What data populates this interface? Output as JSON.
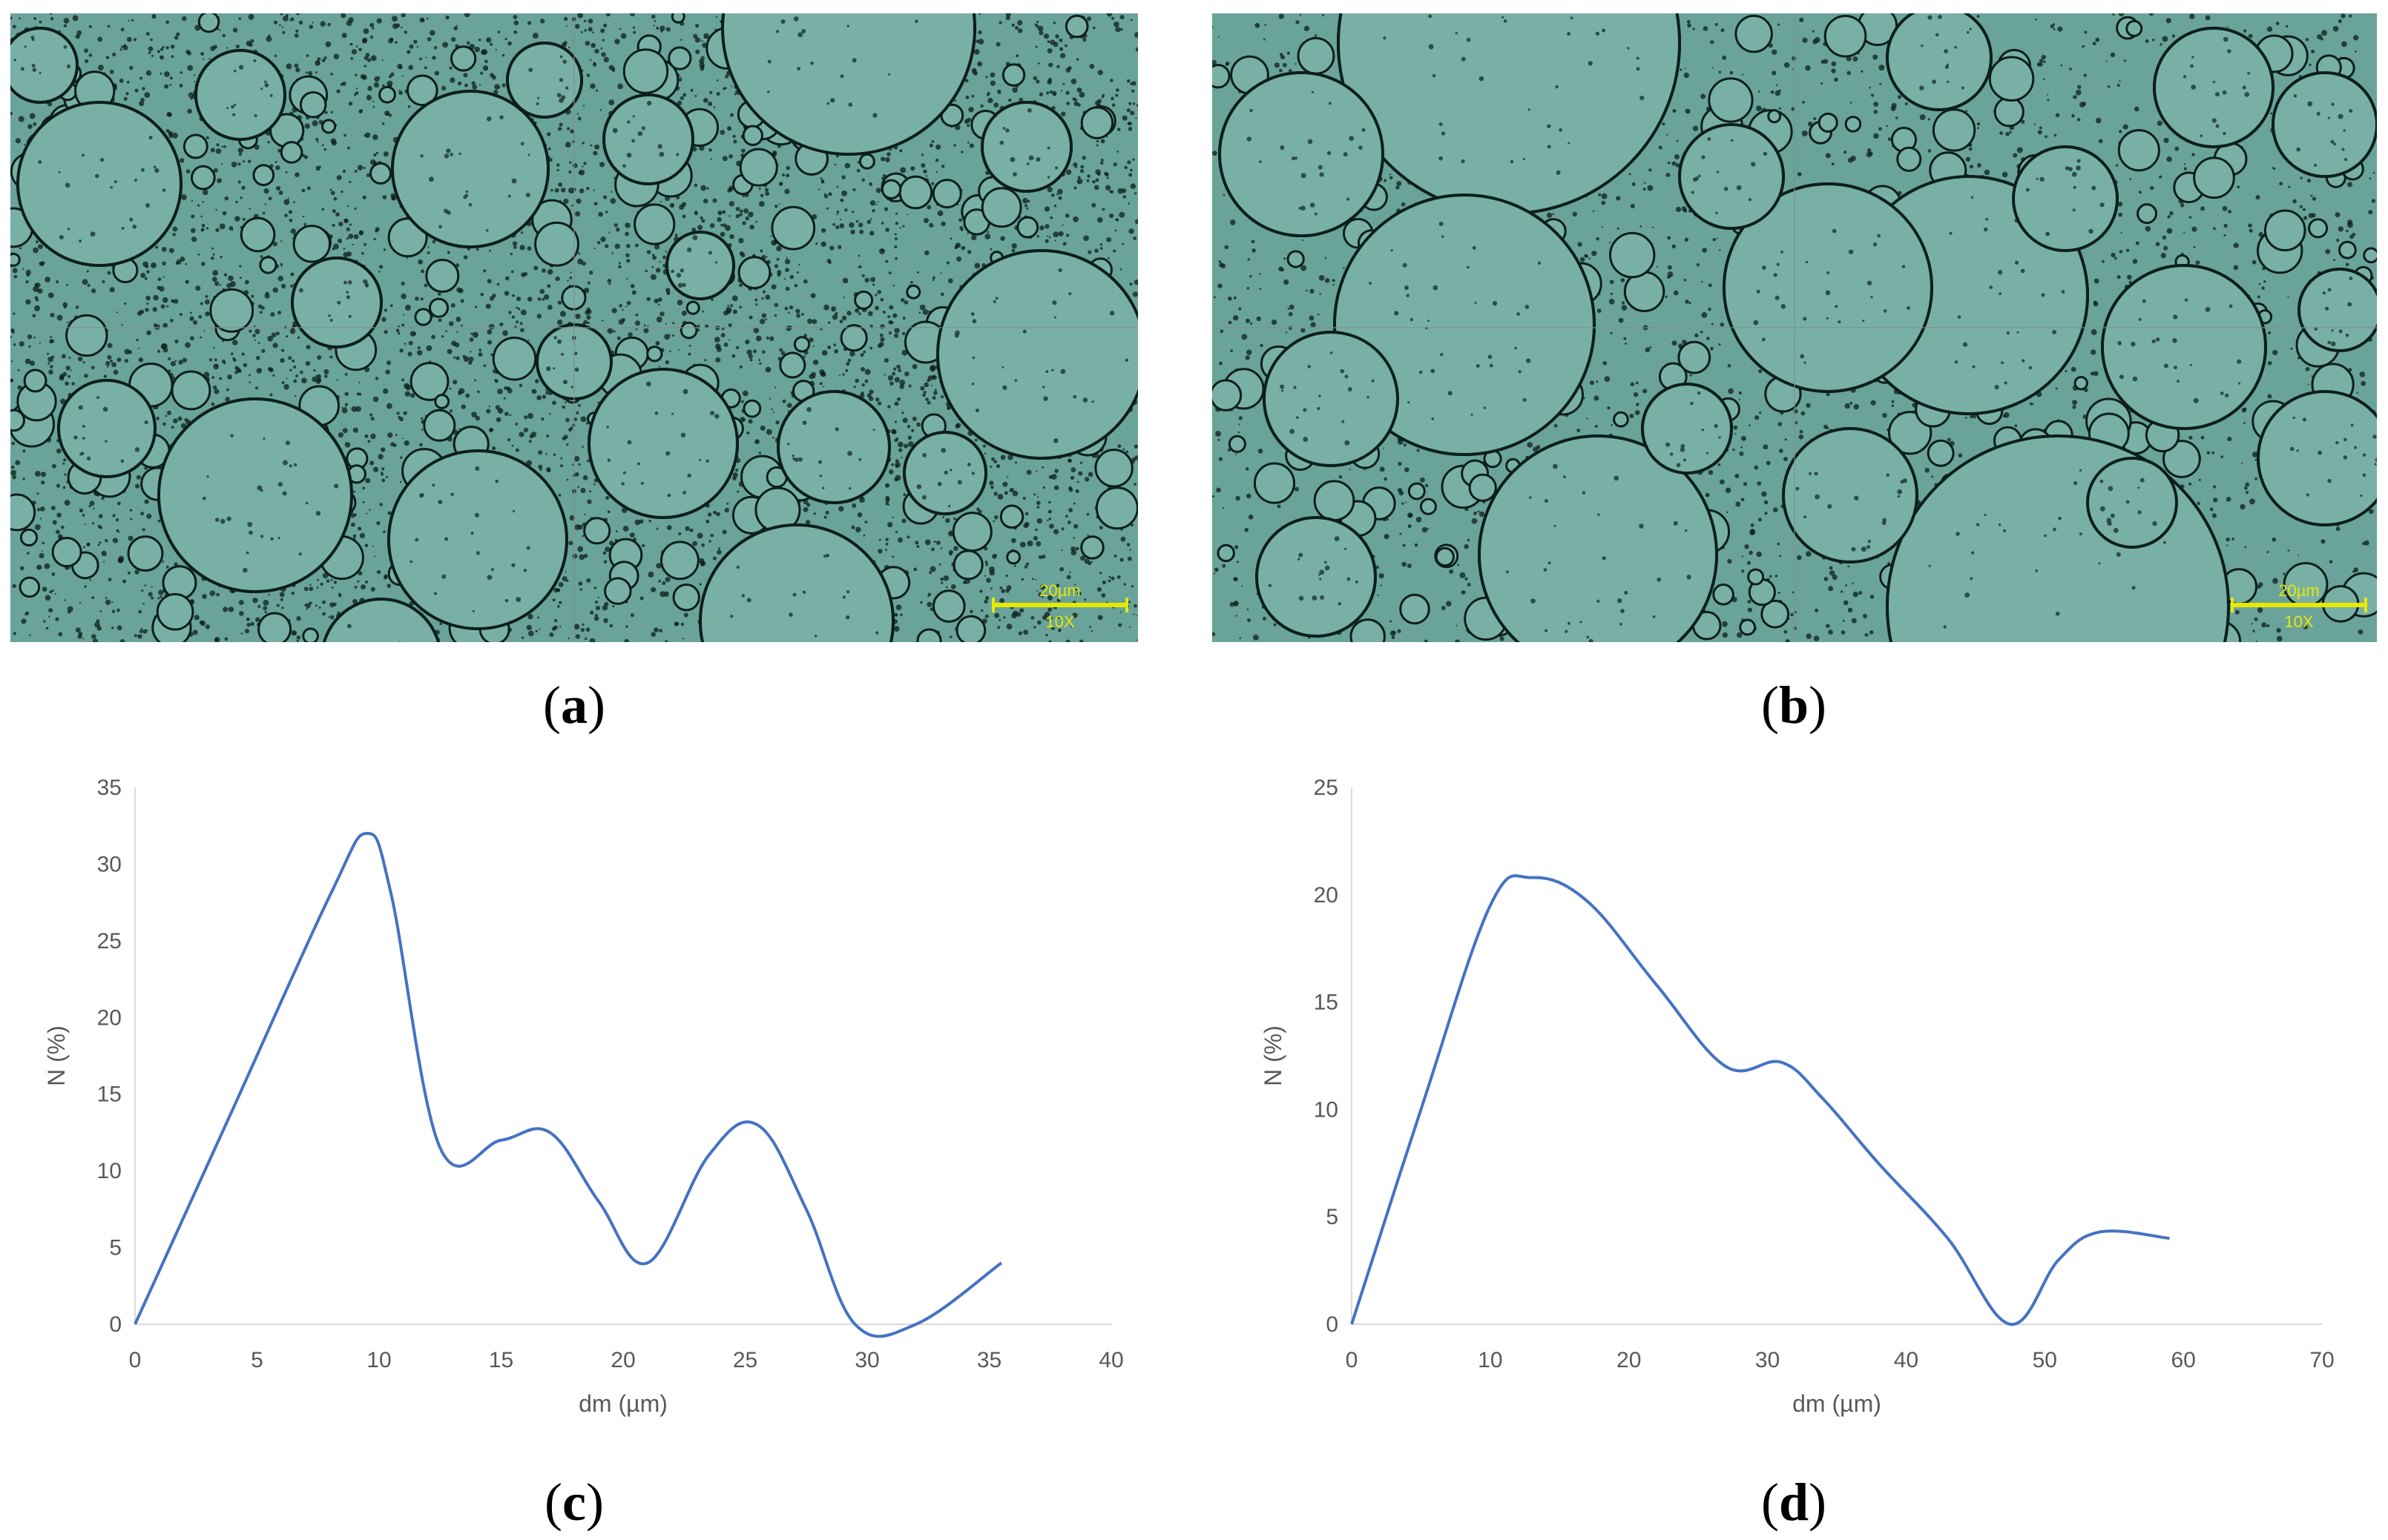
{
  "panels": {
    "a": {
      "label": "a",
      "scale_text": "20µm",
      "mag_text": "10X"
    },
    "b": {
      "label": "b",
      "scale_text": "20µm",
      "mag_text": "10X"
    },
    "c": {
      "label": "c"
    },
    "d": {
      "label": "d"
    }
  },
  "colors": {
    "micro_background": "#6aa39a",
    "droplet_fill": "#78b0a6",
    "droplet_edge": "#0d1f1b",
    "scale_bar": "#e8e800",
    "line": "#4472c4",
    "axis": "#d9d9d9"
  },
  "chart_data": [
    {
      "id": "c",
      "type": "line",
      "title": "",
      "xlabel": "dm (µm)",
      "ylabel": "N (%)",
      "xlim": [
        0,
        40
      ],
      "ylim": [
        0,
        35
      ],
      "xticks": [
        0,
        5,
        10,
        15,
        20,
        25,
        30,
        35,
        40
      ],
      "yticks": [
        0,
        5,
        10,
        15,
        20,
        25,
        30,
        35
      ],
      "smooth": true,
      "series": [
        {
          "x": [
            0,
            4,
            8,
            9.5,
            10.5,
            12.5,
            15,
            17,
            19,
            21,
            23.5,
            25.5,
            27.5,
            29.5,
            32,
            35.5
          ],
          "y": [
            0,
            14,
            28,
            32,
            28,
            11.5,
            12,
            12.5,
            8,
            4,
            11,
            13,
            7.5,
            0,
            0,
            4
          ]
        }
      ]
    },
    {
      "id": "d",
      "type": "line",
      "title": "",
      "xlabel": "dm (µm)",
      "ylabel": "N (%)",
      "xlim": [
        0,
        70
      ],
      "ylim": [
        0,
        25
      ],
      "xticks": [
        0,
        10,
        20,
        30,
        40,
        50,
        60,
        70
      ],
      "yticks": [
        0,
        5,
        10,
        15,
        20,
        25
      ],
      "smooth": true,
      "series": [
        {
          "x": [
            0,
            5,
            10,
            13,
            17,
            22,
            27,
            31,
            34,
            38,
            43,
            47.5,
            51,
            54,
            59
          ],
          "y": [
            0,
            10,
            19.5,
            20.8,
            19.7,
            15.8,
            12,
            12.2,
            10.5,
            7.5,
            4,
            0,
            3,
            4.3,
            4
          ]
        }
      ]
    }
  ]
}
